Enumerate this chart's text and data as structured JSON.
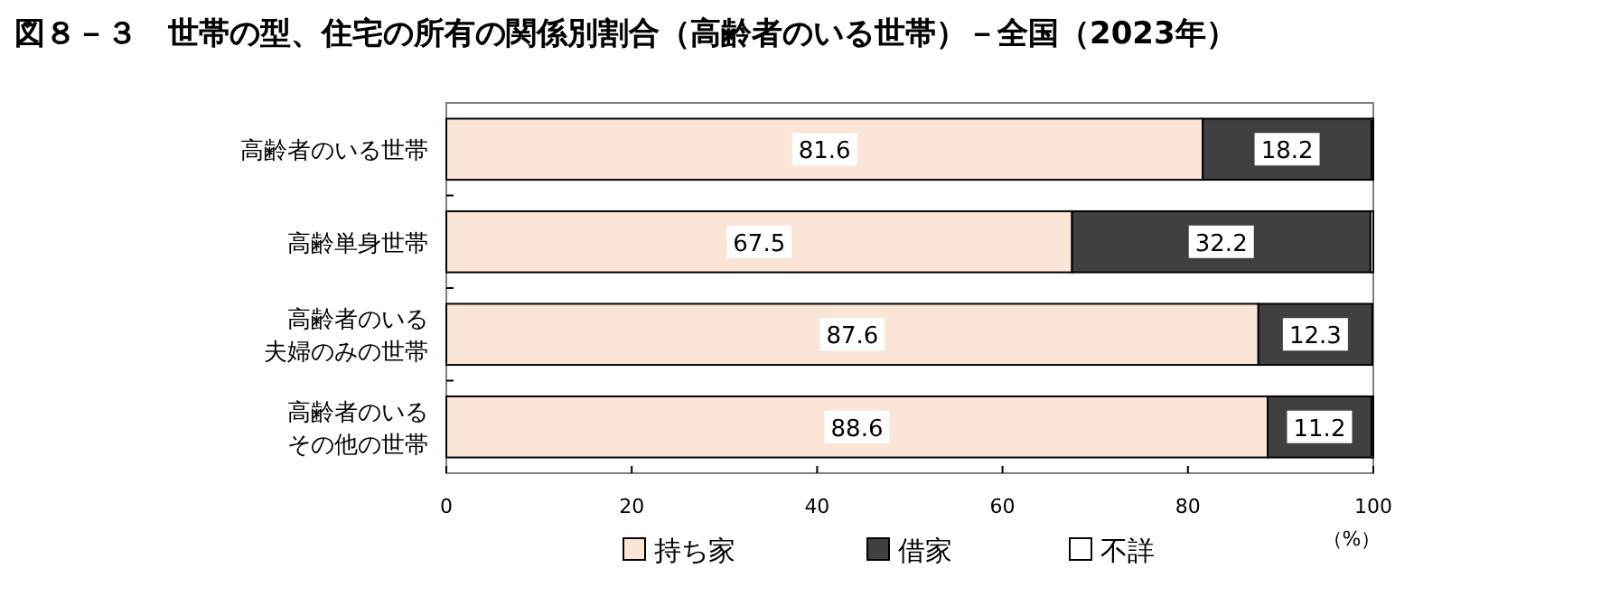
{
  "chart_data": {
    "type": "bar",
    "orientation": "horizontal",
    "stacked": true,
    "title": "図８－３　世帯の型、住宅の所有の関係別割合（高齢者のいる世帯）－全国（2023年）",
    "xlabel": "（%）",
    "categories": [
      "高齢者のいる世帯",
      "高齢単身世帯",
      "高齢者のいる夫婦のみの世帯",
      "高齢者のいるその他の世帯"
    ],
    "series": [
      {
        "name": "持ち家",
        "color": "#fbe5d6",
        "values": [
          81.6,
          67.5,
          87.6,
          88.6
        ],
        "value_labels": [
          "81.6",
          "67.5",
          "87.6",
          "88.6"
        ]
      },
      {
        "name": "借家",
        "color": "#404040",
        "values": [
          18.2,
          32.2,
          12.3,
          11.2
        ],
        "value_labels": [
          "18.2",
          "32.2",
          "12.3",
          "11.2"
        ]
      },
      {
        "name": "不詳",
        "color": "#ffffff",
        "values": [
          0.2,
          0.3,
          null,
          0.2
        ]
      }
    ],
    "xlim": [
      0,
      100
    ],
    "xticks": [
      0,
      20,
      40,
      60,
      80,
      100
    ],
    "grid": false,
    "legend": "bottom"
  }
}
